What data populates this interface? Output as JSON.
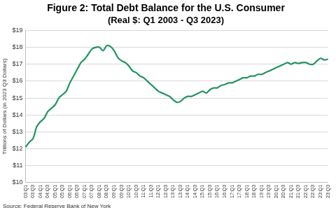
{
  "chart_data": {
    "type": "line",
    "title": "Figure 2: Total Debt Balance for the U.S. Consumer",
    "subtitle": "(Real $: Q1 2003 - Q3 2023)",
    "y_label": "Trillions of Dollars (in 2023 Q3 Dollars)",
    "source": "Source: Federal Reserve Bank of New York",
    "categories": [
      "03:Q1",
      null,
      "03:Q3",
      null,
      "04:Q1",
      null,
      "04:Q3",
      null,
      "05:Q1",
      null,
      "05:Q3",
      null,
      "06:Q1",
      null,
      "06:Q3",
      null,
      "07:Q1",
      null,
      "07:Q3",
      null,
      "08:Q1",
      null,
      "08:Q3",
      null,
      "09:Q1",
      null,
      "09:Q3",
      null,
      "10:Q1",
      null,
      "10:Q3",
      null,
      "11:Q1",
      null,
      "11:Q3",
      null,
      "12:Q1",
      null,
      "12:Q3",
      null,
      "13:Q1",
      null,
      "13:Q3",
      null,
      "14:Q1",
      null,
      "14:Q3",
      null,
      "15:Q1",
      null,
      "15:Q3",
      null,
      "16:Q1",
      null,
      "16:Q3",
      null,
      "17:Q1",
      null,
      "17:Q3",
      null,
      "18:Q1",
      null,
      "18:Q3",
      null,
      "19:Q1",
      null,
      "19:Q3",
      null,
      "20:Q1",
      null,
      "20:Q3",
      null,
      "21:Q1",
      null,
      "21:Q3",
      null,
      "22:Q1",
      null,
      "22:Q3",
      null,
      "23:Q1",
      null,
      "23:Q3"
    ],
    "values": [
      12.1,
      12.4,
      12.6,
      13.3,
      13.6,
      13.8,
      14.2,
      14.4,
      14.6,
      15.0,
      15.2,
      15.4,
      15.9,
      16.3,
      16.7,
      17.1,
      17.3,
      17.6,
      17.9,
      18.0,
      18.0,
      17.8,
      18.1,
      18.05,
      17.8,
      17.4,
      17.2,
      17.1,
      16.9,
      16.6,
      16.5,
      16.3,
      16.2,
      16.0,
      15.8,
      15.6,
      15.4,
      15.3,
      15.2,
      15.1,
      14.9,
      14.75,
      14.8,
      15.0,
      15.1,
      15.1,
      15.2,
      15.3,
      15.4,
      15.3,
      15.5,
      15.6,
      15.6,
      15.75,
      15.8,
      15.9,
      15.9,
      16.0,
      16.1,
      16.2,
      16.2,
      16.3,
      16.3,
      16.4,
      16.4,
      16.5,
      16.6,
      16.7,
      16.8,
      16.9,
      17.0,
      17.1,
      17.0,
      17.1,
      17.05,
      17.1,
      17.1,
      17.0,
      17.0,
      17.2,
      17.35,
      17.25,
      17.3
    ],
    "color": "#23935f",
    "ylim": [
      10,
      19
    ],
    "yticks": [
      {
        "value": 10,
        "label": "$10"
      },
      {
        "value": 11,
        "label": "$11"
      },
      {
        "value": 12,
        "label": "$12"
      },
      {
        "value": 13,
        "label": "$13"
      },
      {
        "value": 14,
        "label": "$14"
      },
      {
        "value": 15,
        "label": "$15"
      },
      {
        "value": 16,
        "label": "$16"
      },
      {
        "value": 17,
        "label": "$17"
      },
      {
        "value": 18,
        "label": "$18"
      },
      {
        "value": 19,
        "label": "$19"
      }
    ],
    "grid": "y"
  }
}
